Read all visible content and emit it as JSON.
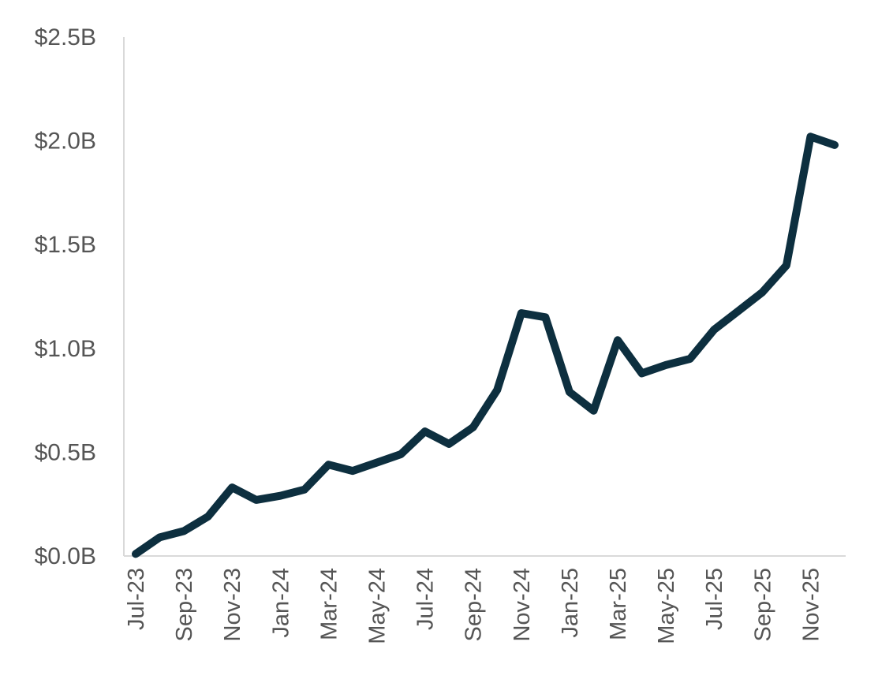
{
  "chart_data": {
    "type": "line",
    "title": "",
    "xlabel": "",
    "ylabel": "",
    "ylim": [
      0,
      2.5
    ],
    "grid": false,
    "legend": "none",
    "y_ticks": [
      "$0.0B",
      "$0.5B",
      "$1.0B",
      "$1.5B",
      "$2.0B",
      "$2.5B"
    ],
    "x": [
      "Jul-23",
      "Aug-23",
      "Sep-23",
      "Oct-23",
      "Nov-23",
      "Dec-23",
      "Jan-24",
      "Feb-24",
      "Mar-24",
      "Apr-24",
      "May-24",
      "Jun-24",
      "Jul-24",
      "Aug-24",
      "Sep-24",
      "Oct-24",
      "Nov-24",
      "Dec-24",
      "Jan-25",
      "Feb-25",
      "Mar-25",
      "Apr-25",
      "May-25",
      "Jun-25",
      "Jul-25",
      "Aug-25",
      "Sep-25",
      "Oct-25",
      "Nov-25",
      "Dec-25"
    ],
    "x_tick_labels": [
      "Jul-23",
      "Sep-23",
      "Nov-23",
      "Jan-24",
      "Mar-24",
      "May-24",
      "Jul-24",
      "Sep-24",
      "Nov-24",
      "Jan-25",
      "Mar-25",
      "May-25",
      "Jul-25",
      "Sep-25",
      "Nov-25"
    ],
    "series": [
      {
        "values": [
          0.01,
          0.09,
          0.12,
          0.19,
          0.33,
          0.27,
          0.29,
          0.32,
          0.44,
          0.41,
          0.45,
          0.49,
          0.6,
          0.54,
          0.62,
          0.8,
          1.17,
          1.15,
          0.79,
          0.7,
          1.04,
          0.88,
          0.92,
          0.95,
          1.09,
          1.18,
          1.27,
          1.4,
          2.02,
          1.98
        ],
        "color": "#0d2f3f"
      }
    ]
  }
}
